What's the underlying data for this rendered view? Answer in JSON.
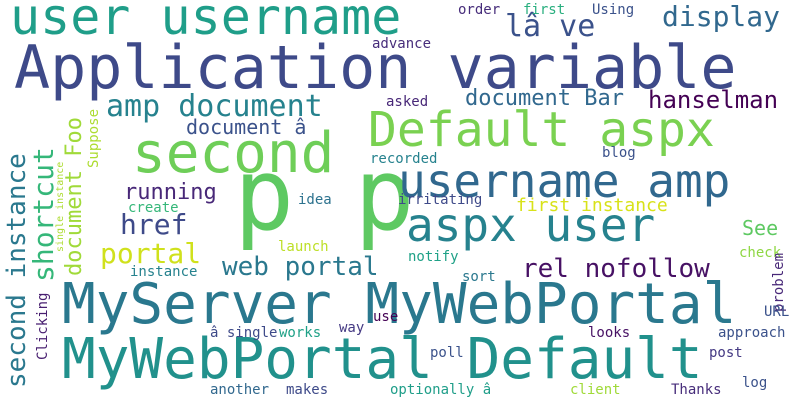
{
  "words": [
    {
      "text": "user username",
      "color": "#1f9e89"
    },
    {
      "text": "Application variable",
      "color": "#3e4a89"
    },
    {
      "text": "Default aspx",
      "color": "#7ad151"
    },
    {
      "text": "second",
      "color": "#6ece58"
    },
    {
      "text": "p p",
      "color": "#5ec962"
    },
    {
      "text": "username amp",
      "color": "#31688e"
    },
    {
      "text": "aspx user",
      "color": "#26828e"
    },
    {
      "text": "MyServer MyWebPortal",
      "color": "#2a788e"
    },
    {
      "text": "MyWebPortal Default",
      "color": "#21918c"
    },
    {
      "text": "amp document",
      "color": "#26828e"
    },
    {
      "text": "lâ ve",
      "color": "#3b528b"
    },
    {
      "text": "display",
      "color": "#31688e"
    },
    {
      "text": "hanselman",
      "color": "#440154"
    },
    {
      "text": "document Bar",
      "color": "#31688e"
    },
    {
      "text": "second instance",
      "color": "#2a788e"
    },
    {
      "text": "shortcut",
      "color": "#35b779"
    },
    {
      "text": "document Foo",
      "color": "#a0da39"
    },
    {
      "text": "document â",
      "color": "#3b528b"
    },
    {
      "text": "running",
      "color": "#482878"
    },
    {
      "text": "href",
      "color": "#3e4a89"
    },
    {
      "text": "portal",
      "color": "#d0e11c"
    },
    {
      "text": "web portal",
      "color": "#2a788e"
    },
    {
      "text": "rel nofollow",
      "color": "#471164"
    },
    {
      "text": "first instance",
      "color": "#d8e219"
    },
    {
      "text": "See",
      "color": "#5ec962"
    },
    {
      "text": "order",
      "color": "#472d7b"
    },
    {
      "text": "first",
      "color": "#29af7f"
    },
    {
      "text": "Using",
      "color": "#3b528b"
    },
    {
      "text": "advance",
      "color": "#472d7b"
    },
    {
      "text": "asked",
      "color": "#482878"
    },
    {
      "text": "recorded",
      "color": "#26828e"
    },
    {
      "text": "blog",
      "color": "#3b528b"
    },
    {
      "text": "idea",
      "color": "#2c728e"
    },
    {
      "text": "irritating",
      "color": "#3e4a89"
    },
    {
      "text": "create",
      "color": "#35b779"
    },
    {
      "text": "instance",
      "color": "#26828e"
    },
    {
      "text": "launch",
      "color": "#bddf26"
    },
    {
      "text": "notify",
      "color": "#1fa187"
    },
    {
      "text": "check",
      "color": "#8fd744"
    },
    {
      "text": "problem",
      "color": "#482878"
    },
    {
      "text": "sort",
      "color": "#2a788e"
    },
    {
      "text": "URL",
      "color": "#3b528b"
    },
    {
      "text": "Suppose",
      "color": "#addc30"
    },
    {
      "text": "Clicking",
      "color": "#481f70"
    },
    {
      "text": "use",
      "color": "#440154"
    },
    {
      "text": "way",
      "color": "#443983"
    },
    {
      "text": "â single",
      "color": "#3e4a89"
    },
    {
      "text": "works",
      "color": "#1fa187"
    },
    {
      "text": "approach",
      "color": "#3b528b"
    },
    {
      "text": "looks",
      "color": "#471164"
    },
    {
      "text": "poll",
      "color": "#3b528b"
    },
    {
      "text": "post",
      "color": "#443983"
    },
    {
      "text": "another",
      "color": "#31688e"
    },
    {
      "text": "makes",
      "color": "#3e4a89"
    },
    {
      "text": "optionally â",
      "color": "#1f9e89"
    },
    {
      "text": "client",
      "color": "#a0da39"
    },
    {
      "text": "Thanks",
      "color": "#472d7b"
    },
    {
      "text": "log",
      "color": "#3b528b"
    },
    {
      "text": "single instance",
      "color": "#addc30"
    }
  ]
}
